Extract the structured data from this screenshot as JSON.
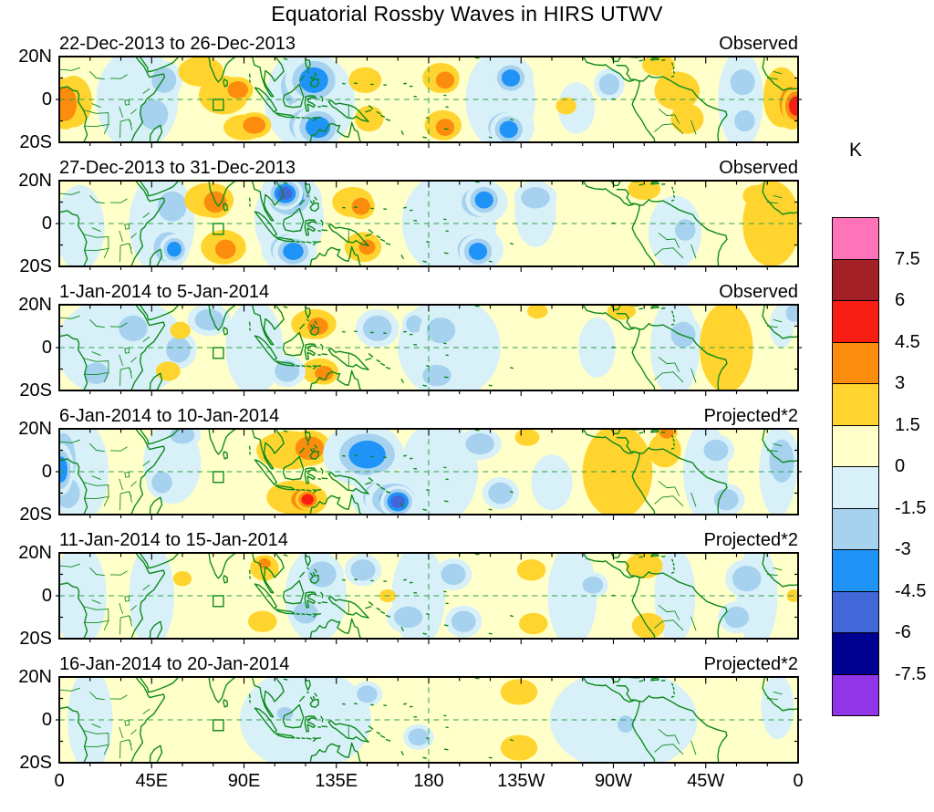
{
  "title": "Equatorial Rossby Waves in HIRS UTWV",
  "colorbar": {
    "unit": "K",
    "tick_labels": [
      "7.5",
      "6",
      "4.5",
      "3",
      "1.5",
      "0",
      "-1.5",
      "-3",
      "-4.5",
      "-6",
      "-7.5"
    ],
    "colors_top_to_bottom": [
      "#FF74B9",
      "#A32026",
      "#F81E14",
      "#FB8C0E",
      "#FFD42E",
      "#FFFFC9",
      "#D8F0F8",
      "#A6D2F0",
      "#1F93F7",
      "#4167D9",
      "#000091",
      "#9135E8"
    ]
  },
  "axes": {
    "x_tick_labels": [
      "0",
      "45E",
      "90E",
      "135E",
      "180",
      "135W",
      "90W",
      "45W",
      "0"
    ],
    "y_tick_labels": [
      "20N",
      "0",
      "20S"
    ]
  },
  "chart_data": {
    "type": "heatmap",
    "subtype": "filled-contour longitude-latitude map panels",
    "units": "K",
    "contour_interval": 1.5,
    "value_range": [
      -7.5,
      7.5
    ],
    "lon_range_deg_east": [
      0,
      360
    ],
    "lat_range": [
      -20,
      20
    ],
    "anomaly_format": "[lon_degE, lat_degN, radius_lon_deg, radius_lat_deg, amplitude_K]",
    "panels": [
      {
        "period": "22-Dec-2013 to 26-Dec-2013",
        "source": "Observed",
        "anomalies": [
          [
            38,
            0,
            20,
            24,
            -0.7
          ],
          [
            122,
            -1,
            22,
            23,
            -0.8
          ],
          [
            215,
            0,
            17,
            23,
            -0.8
          ],
          [
            332,
            0,
            11,
            23,
            -0.7
          ],
          [
            252,
            -4,
            9,
            12,
            -0.6
          ],
          [
            46,
            -7,
            7,
            7,
            -2
          ],
          [
            51,
            9,
            6,
            6,
            -1.9
          ],
          [
            7,
            -1,
            9,
            12,
            2.3
          ],
          [
            3,
            -2,
            5.5,
            8,
            3.7
          ],
          [
            69,
            13,
            11,
            7,
            2.2
          ],
          [
            80,
            2,
            12,
            9,
            2.1
          ],
          [
            87,
            4.5,
            5,
            4,
            3.6
          ],
          [
            90,
            -13,
            10,
            6,
            2.3
          ],
          [
            95,
            -12,
            5.5,
            4,
            3.8
          ],
          [
            120,
            6,
            12,
            11,
            -2.3
          ],
          [
            124,
            9,
            7,
            6,
            -4.2
          ],
          [
            122,
            -12,
            10,
            8,
            -2.3
          ],
          [
            126,
            -13,
            6,
            5,
            -4.3
          ],
          [
            149,
            9,
            8,
            6,
            2.1
          ],
          [
            151,
            -9,
            7,
            6,
            2.1
          ],
          [
            186,
            10,
            9,
            7,
            2.3
          ],
          [
            188,
            9,
            4.5,
            4,
            3.6
          ],
          [
            187,
            -12,
            9,
            7,
            2.3
          ],
          [
            188,
            -13,
            4.5,
            4,
            3.7
          ],
          [
            219,
            10,
            8,
            7,
            -2.4
          ],
          [
            220,
            10,
            4.5,
            4,
            -3.7
          ],
          [
            218,
            -13,
            9,
            7,
            -2.4
          ],
          [
            219,
            -14,
            4.5,
            4,
            -3.7
          ],
          [
            247,
            -3,
            5,
            4,
            1.9
          ],
          [
            292,
            16,
            8,
            5,
            2.1
          ],
          [
            301,
            4,
            11,
            9,
            2.2
          ],
          [
            306,
            -9,
            8,
            7,
            2
          ],
          [
            268,
            7,
            5,
            5,
            -1.8
          ],
          [
            333,
            8,
            6,
            6,
            -1.9
          ],
          [
            334,
            -10,
            5,
            5,
            -1.8
          ],
          [
            352,
            1,
            9,
            14,
            2.4
          ],
          [
            357,
            -2,
            6,
            8,
            3.9
          ],
          [
            359,
            -3,
            3.5,
            4.5,
            5.1
          ]
        ]
      },
      {
        "period": "27-Dec-2013 to 31-Dec-2013",
        "source": "Observed",
        "anomalies": [
          [
            10,
            -2,
            12,
            20,
            -0.6
          ],
          [
            50,
            0,
            16,
            24,
            -0.8
          ],
          [
            112,
            2,
            17,
            21,
            -0.8
          ],
          [
            190,
            0,
            23,
            24,
            -0.85
          ],
          [
            232,
            5,
            10,
            16,
            -0.6
          ],
          [
            300,
            -4,
            13,
            17,
            -0.6
          ],
          [
            55,
            8,
            7,
            7,
            -2.1
          ],
          [
            53,
            -11,
            7,
            7,
            -2.2
          ],
          [
            56,
            -12,
            3.5,
            3.5,
            -3.6
          ],
          [
            73,
            11,
            12,
            8,
            2.4
          ],
          [
            76,
            10,
            5.5,
            5,
            3.8
          ],
          [
            80,
            -11,
            11,
            8,
            2.4
          ],
          [
            81,
            -12,
            5,
            4.5,
            3.9
          ],
          [
            113,
            11,
            10,
            8,
            -2.6
          ],
          [
            112,
            13,
            7,
            6,
            -4
          ],
          [
            110,
            14,
            3.5,
            3,
            -5.2
          ],
          [
            112,
            -12,
            9,
            7,
            -2.4
          ],
          [
            114,
            -13,
            5,
            4,
            -3.7
          ],
          [
            143,
            10,
            10,
            7,
            2.3
          ],
          [
            147,
            8,
            4.5,
            4,
            3.6
          ],
          [
            148,
            -11,
            9,
            7,
            2.3
          ],
          [
            150,
            -11,
            4,
            3.5,
            3.7
          ],
          [
            205,
            10,
            9,
            7,
            -2.6
          ],
          [
            207,
            11,
            4.5,
            4,
            -3.7
          ],
          [
            203,
            -12,
            9,
            7,
            -2.6
          ],
          [
            204,
            -13,
            4.5,
            4,
            -3.7
          ],
          [
            232,
            12,
            7,
            5,
            -2
          ],
          [
            285,
            16,
            8,
            5,
            2.1
          ],
          [
            340,
            13,
            7,
            5,
            2.2
          ],
          [
            347,
            0,
            14,
            20,
            2.5
          ],
          [
            305,
            -3,
            5,
            5,
            -1.7
          ]
        ]
      },
      {
        "period": "1-Jan-2014 to 5-Jan-2014",
        "source": "Observed",
        "anomalies": [
          [
            30,
            0,
            32,
            24,
            -0.75
          ],
          [
            95,
            0,
            14,
            22,
            -0.7
          ],
          [
            190,
            0,
            25,
            24,
            -0.75
          ],
          [
            300,
            0,
            12,
            23,
            -0.65
          ],
          [
            262,
            0,
            9,
            14,
            -0.55
          ],
          [
            352,
            10,
            6,
            10,
            -0.55
          ],
          [
            36,
            9,
            7,
            6,
            -2
          ],
          [
            18,
            -12,
            6,
            5,
            -1.9
          ],
          [
            58,
            -1,
            6,
            6,
            -1.9
          ],
          [
            73,
            13,
            7,
            5,
            -2
          ],
          [
            59,
            8,
            5,
            4,
            1.9
          ],
          [
            53,
            -11,
            6,
            4.5,
            1.9
          ],
          [
            124,
            11,
            11,
            7,
            2.4
          ],
          [
            126,
            10,
            5,
            4,
            3.7
          ],
          [
            127,
            -11,
            9,
            6,
            2.4
          ],
          [
            129,
            -12,
            4.5,
            3.5,
            3.7
          ],
          [
            111,
            -11,
            6,
            5,
            -1.9
          ],
          [
            155,
            9,
            7,
            6,
            -2.1
          ],
          [
            173,
            11,
            4,
            4,
            -1.8
          ],
          [
            186,
            8,
            7,
            6,
            -2
          ],
          [
            184,
            -13,
            7,
            5,
            -1.9
          ],
          [
            233,
            17,
            5,
            3.5,
            1.9
          ],
          [
            274,
            17,
            7,
            4,
            2.1
          ],
          [
            304,
            6,
            6,
            6,
            -2
          ],
          [
            325,
            0,
            13,
            21,
            2.6
          ],
          [
            358,
            16,
            4,
            4,
            -1.8
          ]
        ]
      },
      {
        "period": "6-Jan-2014 to 10-Jan-2014",
        "source": "Projected*2",
        "anomalies": [
          [
            10,
            0,
            14,
            24,
            -0.8
          ],
          [
            55,
            4,
            14,
            19,
            -0.65
          ],
          [
            185,
            0,
            19,
            24,
            -0.8
          ],
          [
            240,
            -5,
            10,
            13,
            -0.6
          ],
          [
            315,
            0,
            11,
            23,
            -0.7
          ],
          [
            350,
            0,
            9,
            21,
            -0.7
          ],
          [
            2,
            5,
            6,
            13,
            -2.2
          ],
          [
            4,
            -10,
            6,
            7,
            -2.2
          ],
          [
            1,
            1,
            3,
            6,
            -3.6
          ],
          [
            60,
            17,
            6,
            4,
            -1.9
          ],
          [
            50,
            -5,
            5,
            5,
            -1.7
          ],
          [
            112,
            10,
            16,
            9,
            2.5
          ],
          [
            122,
            11,
            7,
            5.5,
            3.9
          ],
          [
            115,
            -12,
            14,
            8,
            2.5
          ],
          [
            120,
            -13,
            7,
            5,
            4.1
          ],
          [
            121,
            -13,
            3,
            2.5,
            5.2
          ],
          [
            148,
            8,
            13,
            10,
            -2.4
          ],
          [
            150,
            8,
            9,
            6.5,
            -4
          ],
          [
            160,
            -12,
            12,
            8,
            -2.5
          ],
          [
            163,
            -13,
            7,
            5,
            -4.2
          ],
          [
            165,
            -14,
            3.5,
            3,
            -5.3
          ],
          [
            205,
            13,
            7,
            5,
            -2.1
          ],
          [
            228,
            16,
            6,
            4,
            2
          ],
          [
            215,
            -10,
            6,
            5,
            -1.7
          ],
          [
            272,
            0,
            17,
            22,
            2.5
          ],
          [
            295,
            10,
            8,
            8,
            2.1
          ],
          [
            296,
            18,
            3.5,
            2.5,
            3.4
          ],
          [
            320,
            10,
            6,
            5,
            -2.1
          ],
          [
            325,
            -13,
            6,
            5,
            -2.1
          ],
          [
            352,
            5,
            6,
            10,
            -2
          ]
        ]
      },
      {
        "period": "11-Jan-2014 to 15-Jan-2014",
        "source": "Projected*2",
        "anomalies": [
          [
            10,
            0,
            13,
            24,
            -0.65
          ],
          [
            45,
            0,
            11,
            24,
            -0.6
          ],
          [
            125,
            0,
            15,
            22,
            -0.75
          ],
          [
            175,
            0,
            13,
            24,
            -0.7
          ],
          [
            250,
            0,
            12,
            24,
            -0.6
          ],
          [
            300,
            0,
            10,
            22,
            -0.6
          ],
          [
            340,
            0,
            10,
            24,
            -0.65
          ],
          [
            60,
            8,
            4.5,
            3.5,
            1.8
          ],
          [
            100,
            13,
            7,
            6,
            2.4
          ],
          [
            100,
            15,
            3,
            2.5,
            3.3
          ],
          [
            99,
            -12,
            7,
            5,
            2.2
          ],
          [
            160,
            0,
            4,
            3,
            1.8
          ],
          [
            128,
            10,
            7,
            6,
            -2.2
          ],
          [
            120,
            -8,
            6,
            5,
            -2
          ],
          [
            148,
            12,
            6,
            5,
            -2
          ],
          [
            170,
            -10,
            7,
            5,
            -1.8
          ],
          [
            192,
            10,
            6,
            5,
            -2
          ],
          [
            197,
            -12,
            6,
            5,
            -2
          ],
          [
            230,
            12,
            7,
            5,
            2.3
          ],
          [
            231,
            -13,
            7,
            5,
            2.3
          ],
          [
            285,
            14,
            9,
            6,
            2.4
          ],
          [
            287,
            -14,
            8,
            6,
            2.4
          ],
          [
            260,
            5,
            5,
            4,
            -1.7
          ],
          [
            335,
            8,
            7,
            6,
            -2.1
          ],
          [
            330,
            -10,
            6,
            5,
            -1.9
          ],
          [
            358,
            0,
            3.5,
            3,
            1.7
          ]
        ]
      },
      {
        "period": "16-Jan-2014 to 20-Jan-2014",
        "source": "Projected*2",
        "anomalies": [
          [
            15,
            0,
            11,
            24,
            -0.6
          ],
          [
            120,
            0,
            32,
            24,
            -0.7
          ],
          [
            275,
            0,
            36,
            24,
            -0.7
          ],
          [
            350,
            6,
            8,
            15,
            -0.55
          ],
          [
            110,
            3,
            4,
            3,
            -1.6
          ],
          [
            150,
            12,
            5,
            4,
            -1.8
          ],
          [
            175,
            -8,
            5,
            4,
            -1.7
          ],
          [
            276,
            -2,
            4,
            4,
            -2
          ],
          [
            224,
            13,
            9,
            6,
            2.2
          ],
          [
            224,
            -13,
            9,
            6,
            2.2
          ]
        ]
      }
    ],
    "map_overlay": {
      "equator_dashed_line": true,
      "dateline_dashed_line_at_deg": 180,
      "reference_box_lon": [
        75,
        80
      ],
      "reference_box_lat": [
        -5,
        0
      ]
    }
  }
}
